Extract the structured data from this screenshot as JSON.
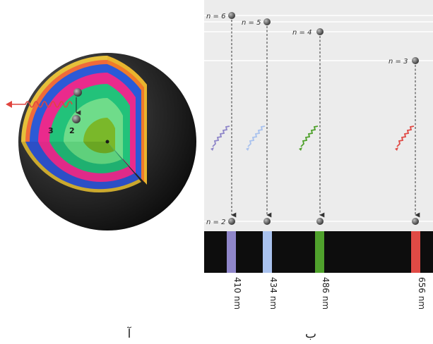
{
  "panel_a": {
    "caption": "آ",
    "shell_numbers": [
      "3",
      "2"
    ]
  },
  "panel_b": {
    "caption": "ب",
    "levels": [
      {
        "label": "n = 6"
      },
      {
        "label": "n = 5"
      },
      {
        "label": "n = 4"
      },
      {
        "label": "n = 3"
      },
      {
        "label": "n = 2"
      }
    ],
    "transitions": [
      {
        "from": "n = 6",
        "to": "n = 2",
        "wavelength": "410 nm",
        "color": "#8f86c9"
      },
      {
        "from": "n = 5",
        "to": "n = 2",
        "wavelength": "434 nm",
        "color": "#a9c2ee"
      },
      {
        "from": "n = 4",
        "to": "n = 2",
        "wavelength": "486 nm",
        "color": "#4fa12c"
      },
      {
        "from": "n = 3",
        "to": "n = 2",
        "wavelength": "656 nm",
        "color": "#e04a45"
      }
    ]
  },
  "colors": {
    "sphere_dark": "#1a1a1a",
    "panel_bg": "#ececec",
    "spectrum_bg": "#0d0d0d",
    "photon_red": "#e0443e"
  }
}
